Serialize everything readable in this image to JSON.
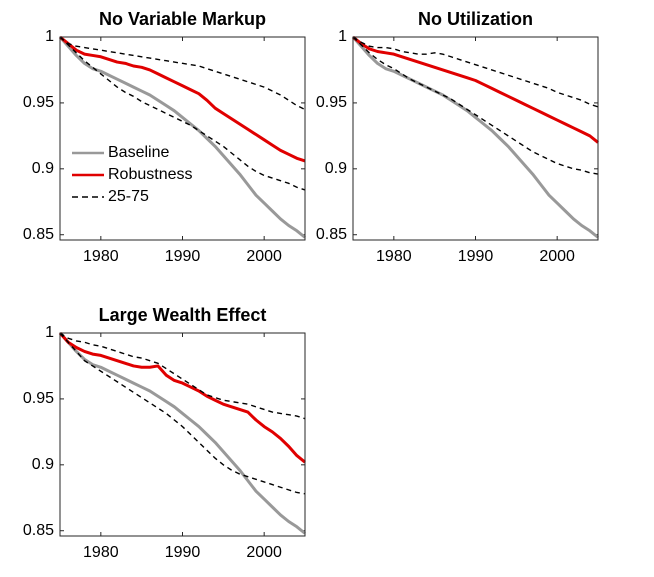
{
  "chart_data": [
    {
      "type": "line",
      "title": "No Variable Markup",
      "x": [
        1975,
        1976,
        1977,
        1978,
        1979,
        1980,
        1981,
        1982,
        1983,
        1984,
        1985,
        1986,
        1987,
        1988,
        1989,
        1990,
        1991,
        1992,
        1993,
        1994,
        1995,
        1996,
        1997,
        1998,
        1999,
        2000,
        2001,
        2002,
        2003,
        2004,
        2005
      ],
      "xlim": [
        1975,
        2005
      ],
      "xticks": [
        1980,
        1990,
        2000
      ],
      "ylim": [
        0.846,
        1
      ],
      "yticks": [
        0.85,
        0.9,
        0.95,
        1
      ],
      "legend": "lower left",
      "series": [
        {
          "name": "Baseline",
          "color": "#999999",
          "linestyle": "solid",
          "values": [
            1.0,
            0.993,
            0.986,
            0.98,
            0.976,
            0.974,
            0.971,
            0.968,
            0.965,
            0.962,
            0.959,
            0.956,
            0.952,
            0.948,
            0.944,
            0.939,
            0.934,
            0.929,
            0.923,
            0.917,
            0.91,
            0.903,
            0.896,
            0.888,
            0.88,
            0.874,
            0.868,
            0.862,
            0.857,
            0.853,
            0.848
          ]
        },
        {
          "name": "Robustness",
          "color": "#e00000",
          "linestyle": "solid",
          "values": [
            1.0,
            0.995,
            0.99,
            0.987,
            0.986,
            0.985,
            0.983,
            0.981,
            0.98,
            0.978,
            0.977,
            0.975,
            0.972,
            0.969,
            0.966,
            0.963,
            0.96,
            0.957,
            0.952,
            0.946,
            0.942,
            0.938,
            0.934,
            0.93,
            0.926,
            0.922,
            0.918,
            0.914,
            0.911,
            0.908,
            0.906
          ]
        },
        {
          "name": "25-75",
          "color": "#000000",
          "linestyle": "dashed",
          "upper": [
            1.0,
            0.995,
            0.993,
            0.992,
            0.991,
            0.99,
            0.989,
            0.988,
            0.987,
            0.986,
            0.985,
            0.984,
            0.983,
            0.982,
            0.981,
            0.98,
            0.979,
            0.978,
            0.976,
            0.974,
            0.972,
            0.97,
            0.968,
            0.966,
            0.964,
            0.962,
            0.959,
            0.956,
            0.952,
            0.948,
            0.945
          ],
          "lower": [
            1.0,
            0.994,
            0.988,
            0.982,
            0.977,
            0.972,
            0.967,
            0.962,
            0.958,
            0.955,
            0.951,
            0.948,
            0.945,
            0.942,
            0.939,
            0.936,
            0.933,
            0.929,
            0.925,
            0.921,
            0.917,
            0.912,
            0.907,
            0.902,
            0.898,
            0.895,
            0.893,
            0.891,
            0.889,
            0.886,
            0.884
          ]
        }
      ]
    },
    {
      "type": "line",
      "title": "No Utilization",
      "x": [
        1975,
        1976,
        1977,
        1978,
        1979,
        1980,
        1981,
        1982,
        1983,
        1984,
        1985,
        1986,
        1987,
        1988,
        1989,
        1990,
        1991,
        1992,
        1993,
        1994,
        1995,
        1996,
        1997,
        1998,
        1999,
        2000,
        2001,
        2002,
        2003,
        2004,
        2005
      ],
      "xlim": [
        1975,
        2005
      ],
      "xticks": [
        1980,
        1990,
        2000
      ],
      "ylim": [
        0.846,
        1
      ],
      "yticks": [
        0.85,
        0.9,
        0.95,
        1
      ],
      "series": [
        {
          "color": "#999999",
          "linestyle": "solid",
          "values": [
            1.0,
            0.993,
            0.986,
            0.98,
            0.976,
            0.974,
            0.971,
            0.968,
            0.965,
            0.962,
            0.959,
            0.956,
            0.952,
            0.948,
            0.944,
            0.939,
            0.934,
            0.929,
            0.923,
            0.917,
            0.91,
            0.903,
            0.896,
            0.888,
            0.88,
            0.874,
            0.868,
            0.862,
            0.857,
            0.853,
            0.848
          ]
        },
        {
          "color": "#e00000",
          "linestyle": "solid",
          "values": [
            1.0,
            0.995,
            0.991,
            0.989,
            0.988,
            0.987,
            0.985,
            0.983,
            0.981,
            0.979,
            0.977,
            0.975,
            0.973,
            0.971,
            0.969,
            0.967,
            0.964,
            0.961,
            0.958,
            0.955,
            0.952,
            0.949,
            0.946,
            0.943,
            0.94,
            0.937,
            0.934,
            0.931,
            0.928,
            0.925,
            0.92
          ]
        },
        {
          "color": "#000000",
          "linestyle": "dashed",
          "upper": [
            1.0,
            0.996,
            0.993,
            0.992,
            0.992,
            0.991,
            0.989,
            0.988,
            0.987,
            0.987,
            0.988,
            0.987,
            0.985,
            0.983,
            0.981,
            0.979,
            0.977,
            0.975,
            0.973,
            0.971,
            0.969,
            0.967,
            0.965,
            0.963,
            0.961,
            0.958,
            0.956,
            0.954,
            0.952,
            0.949,
            0.947
          ],
          "lower": [
            1.0,
            0.994,
            0.988,
            0.983,
            0.979,
            0.976,
            0.972,
            0.968,
            0.965,
            0.962,
            0.959,
            0.956,
            0.953,
            0.949,
            0.945,
            0.941,
            0.937,
            0.933,
            0.929,
            0.925,
            0.921,
            0.917,
            0.913,
            0.91,
            0.907,
            0.904,
            0.902,
            0.9,
            0.899,
            0.897,
            0.896
          ]
        }
      ]
    },
    {
      "type": "line",
      "title": "Large Wealth Effect",
      "x": [
        1975,
        1976,
        1977,
        1978,
        1979,
        1980,
        1981,
        1982,
        1983,
        1984,
        1985,
        1986,
        1987,
        1988,
        1989,
        1990,
        1991,
        1992,
        1993,
        1994,
        1995,
        1996,
        1997,
        1998,
        1999,
        2000,
        2001,
        2002,
        2003,
        2004,
        2005
      ],
      "xlim": [
        1975,
        2005
      ],
      "xticks": [
        1980,
        1990,
        2000
      ],
      "ylim": [
        0.846,
        1
      ],
      "yticks": [
        0.85,
        0.9,
        0.95,
        1
      ],
      "series": [
        {
          "color": "#999999",
          "linestyle": "solid",
          "values": [
            1.0,
            0.993,
            0.986,
            0.98,
            0.976,
            0.974,
            0.971,
            0.968,
            0.965,
            0.962,
            0.959,
            0.956,
            0.952,
            0.948,
            0.944,
            0.939,
            0.934,
            0.929,
            0.923,
            0.917,
            0.91,
            0.903,
            0.896,
            0.888,
            0.88,
            0.874,
            0.868,
            0.862,
            0.857,
            0.853,
            0.848
          ]
        },
        {
          "color": "#e00000",
          "linestyle": "solid",
          "values": [
            1.0,
            0.993,
            0.989,
            0.986,
            0.984,
            0.983,
            0.981,
            0.979,
            0.977,
            0.975,
            0.974,
            0.974,
            0.975,
            0.968,
            0.964,
            0.962,
            0.959,
            0.956,
            0.952,
            0.949,
            0.946,
            0.944,
            0.942,
            0.94,
            0.934,
            0.929,
            0.925,
            0.92,
            0.914,
            0.907,
            0.902
          ]
        },
        {
          "color": "#000000",
          "linestyle": "dashed",
          "upper": [
            1.0,
            0.996,
            0.994,
            0.993,
            0.991,
            0.99,
            0.988,
            0.986,
            0.984,
            0.982,
            0.981,
            0.979,
            0.977,
            0.973,
            0.969,
            0.965,
            0.961,
            0.957,
            0.953,
            0.951,
            0.949,
            0.948,
            0.947,
            0.946,
            0.944,
            0.942,
            0.94,
            0.939,
            0.938,
            0.937,
            0.935
          ],
          "lower": [
            1.0,
            0.993,
            0.986,
            0.979,
            0.975,
            0.971,
            0.967,
            0.963,
            0.959,
            0.955,
            0.951,
            0.947,
            0.943,
            0.939,
            0.934,
            0.929,
            0.923,
            0.917,
            0.911,
            0.905,
            0.9,
            0.896,
            0.893,
            0.891,
            0.889,
            0.887,
            0.885,
            0.883,
            0.881,
            0.879,
            0.878
          ]
        }
      ]
    }
  ]
}
